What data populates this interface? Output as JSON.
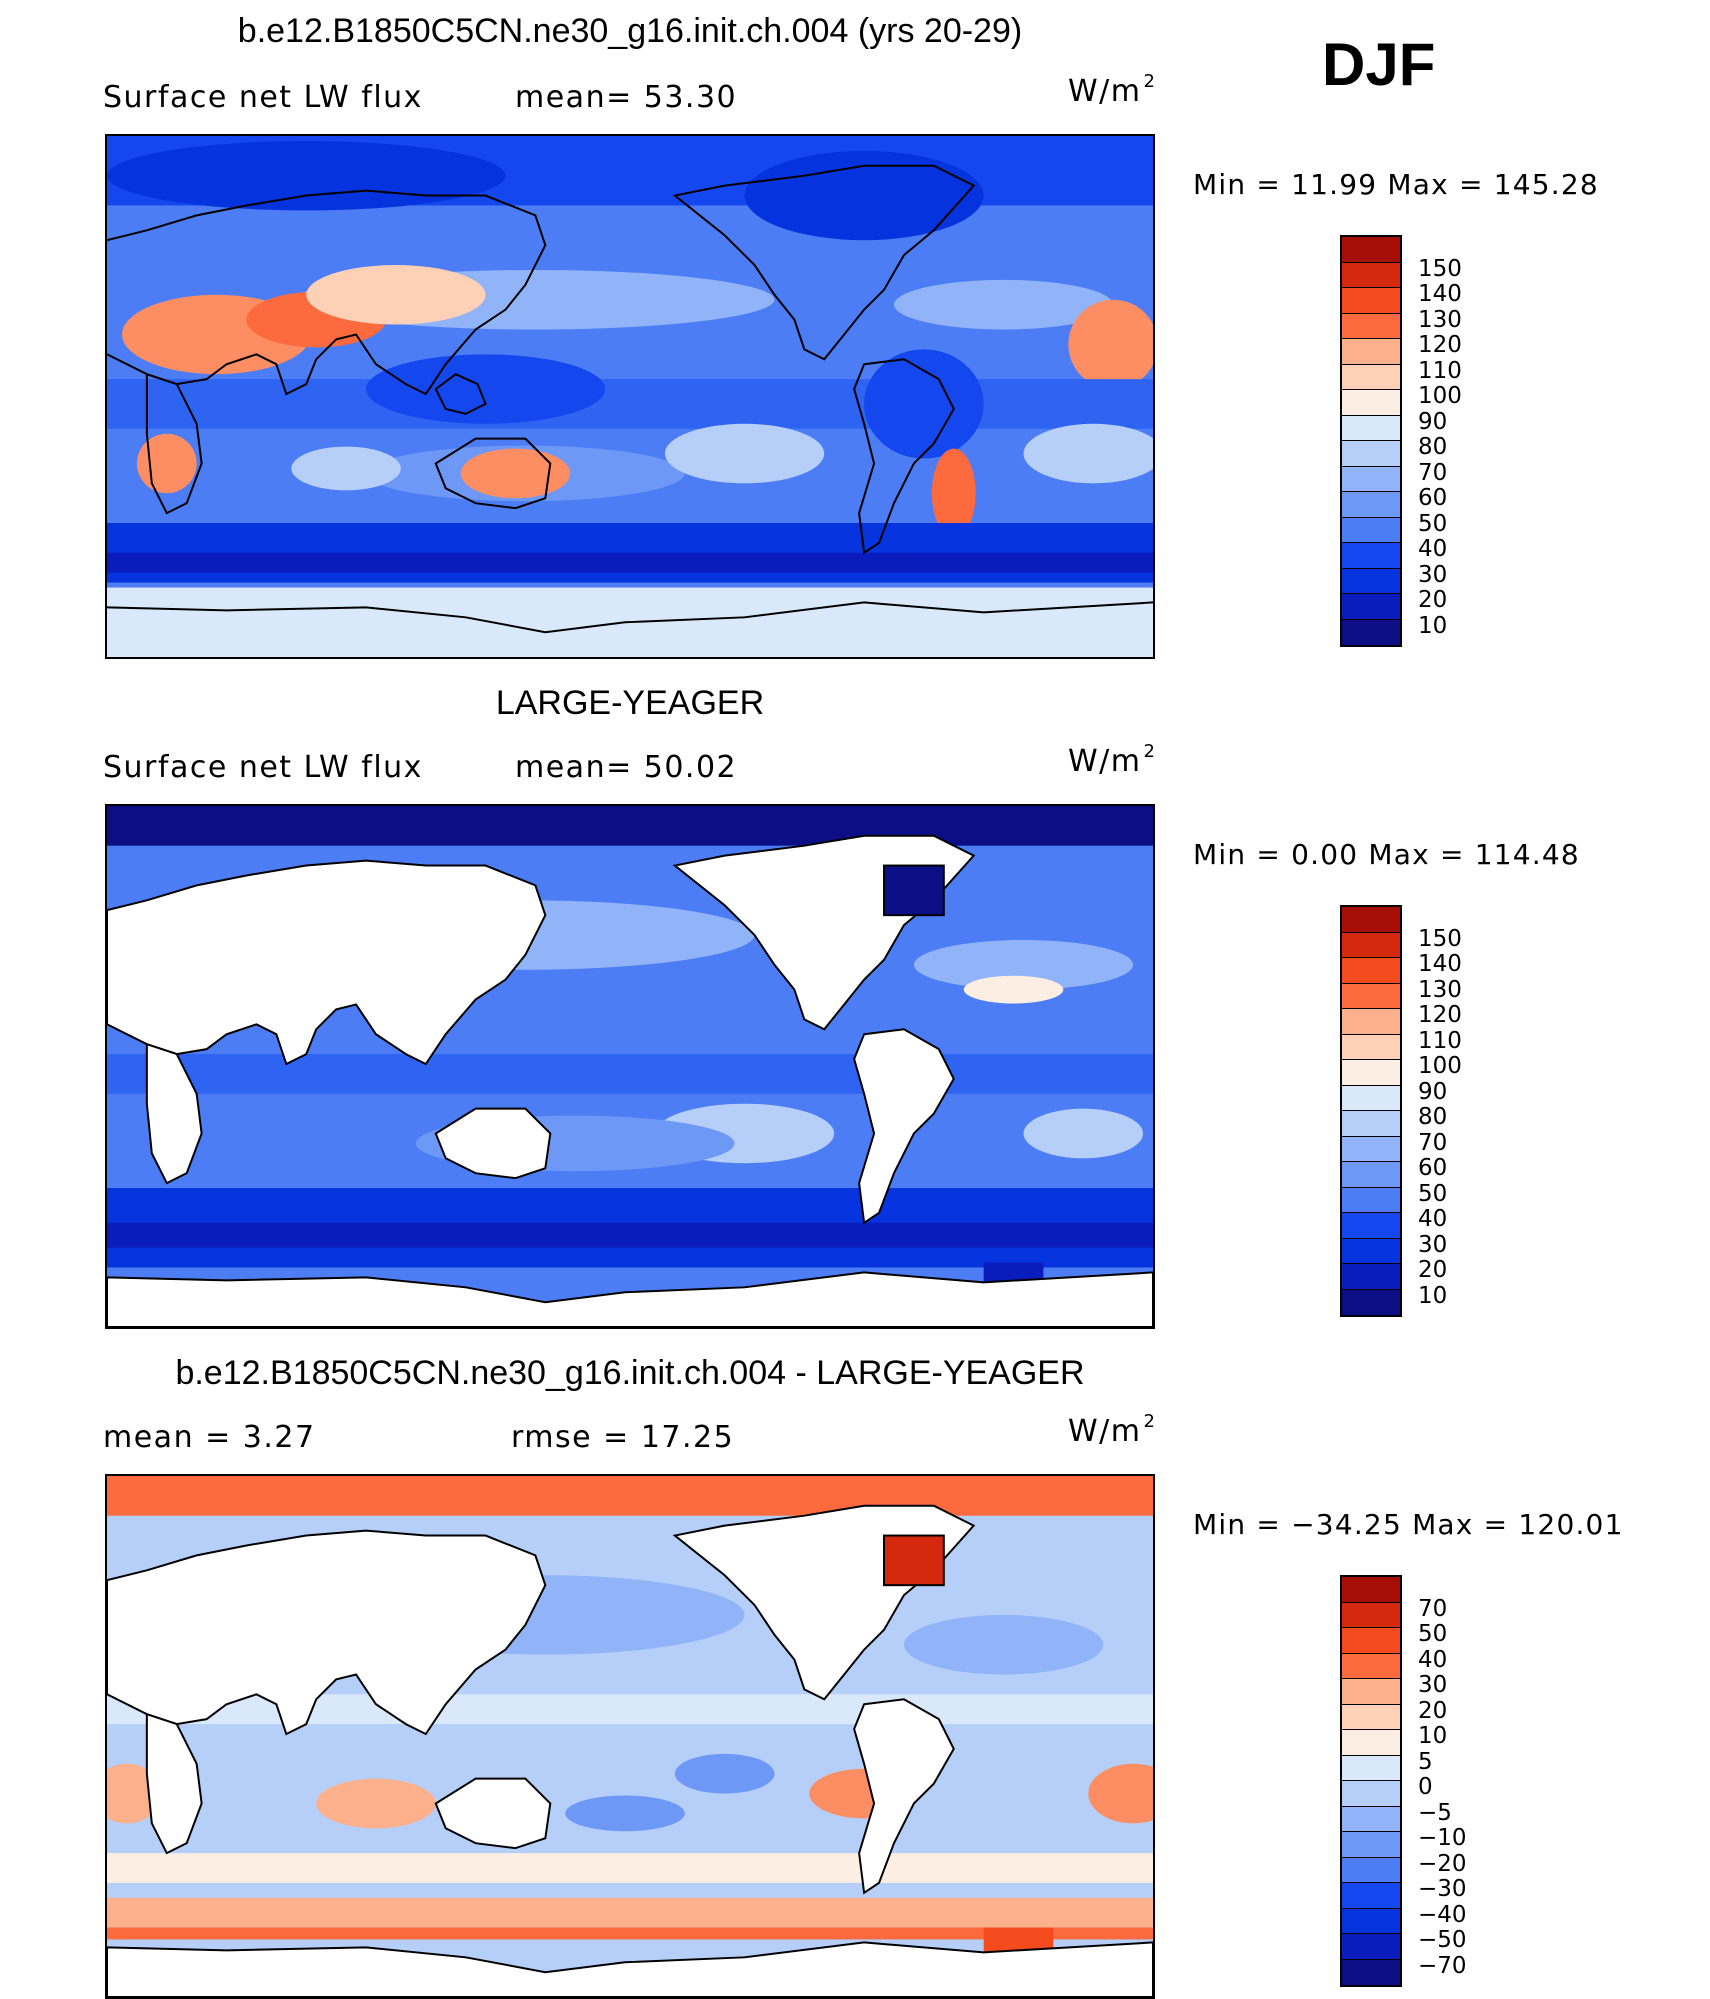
{
  "season": "DJF",
  "palette_colors": [
    "#0c0e86",
    "#0a1dbc",
    "#0533dd",
    "#1448ee",
    "#2f63f2",
    "#4c7df4",
    "#6e98f6",
    "#91b4f8",
    "#b5cff9",
    "#dae8fb",
    "#fceee3",
    "#fed0b6",
    "#fdb08c",
    "#fd8d63",
    "#fc6a3e",
    "#f34a1e",
    "#d5290d",
    "#a50f07"
  ],
  "panels": [
    {
      "title": "b.e12.B1850C5CN.ne30_g16.init.ch.004 (yrs 20-29)",
      "left_label": "Surface net LW flux",
      "stat1": "mean=  53.30",
      "stat2": "",
      "units": "W/m",
      "units_sup": "2",
      "minmax": "Min =   11.99 Max = 145.28",
      "colorbar_labels": [
        "150",
        "140",
        "130",
        "120",
        "110",
        "100",
        "90",
        "80",
        "70",
        "60",
        "50",
        "40",
        "30",
        "20",
        "10"
      ]
    },
    {
      "title": "LARGE-YEAGER",
      "left_label": "Surface net LW flux",
      "stat1": "mean=  50.02",
      "stat2": "",
      "units": "W/m",
      "units_sup": "2",
      "minmax": "Min =    0.00 Max = 114.48",
      "colorbar_labels": [
        "150",
        "140",
        "130",
        "120",
        "110",
        "100",
        "90",
        "80",
        "70",
        "60",
        "50",
        "40",
        "30",
        "20",
        "10"
      ]
    },
    {
      "title": "b.e12.B1850C5CN.ne30_g16.init.ch.004 - LARGE-YEAGER",
      "left_label": "mean =    3.27",
      "stat1": "rmse =   17.25",
      "stat2": "",
      "units": "W/m",
      "units_sup": "2",
      "minmax": "Min = −34.25 Max = 120.01",
      "colorbar_labels": [
        "70",
        "50",
        "40",
        "30",
        "20",
        "10",
        "5",
        "0",
        "−5",
        "−10",
        "−20",
        "−30",
        "−40",
        "−50",
        "−70"
      ]
    }
  ]
}
